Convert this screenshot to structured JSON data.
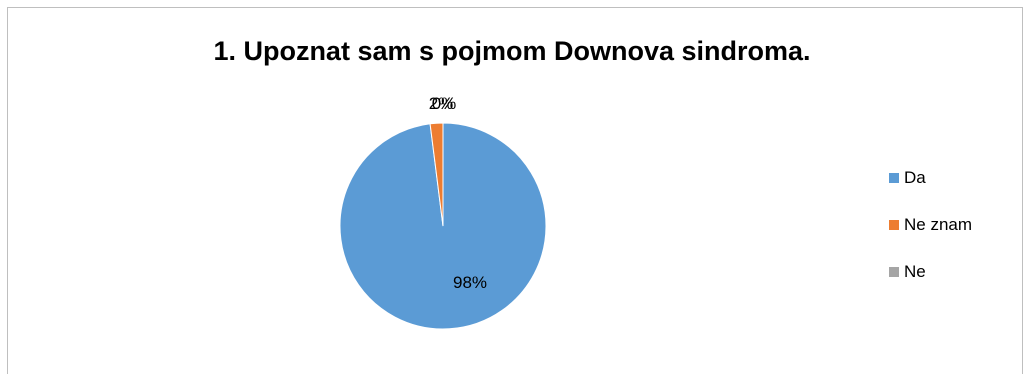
{
  "chart_data": {
    "type": "pie",
    "title": "1. Upoznat sam s pojmom Downova sindroma.",
    "categories": [
      "Da",
      "Ne znam",
      "Ne"
    ],
    "values": [
      98,
      2,
      0
    ],
    "labels": [
      "98%",
      "2%",
      "0%"
    ],
    "colors": [
      "#5b9bd5",
      "#ed7d31",
      "#a5a5a5"
    ],
    "legend_position": "right"
  }
}
